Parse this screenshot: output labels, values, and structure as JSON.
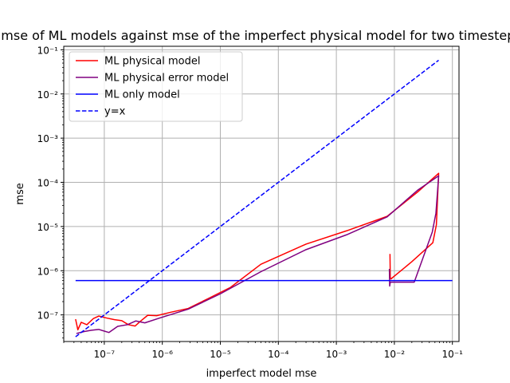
{
  "chart_data": {
    "type": "line",
    "title": "mse of ML models against mse of the imperfect physical model for two timesteps",
    "xlabel": "imperfect model mse",
    "ylabel": "mse",
    "xscale": "log",
    "yscale": "log",
    "xlim": [
      2e-08,
      0.13
    ],
    "ylim": [
      2.5e-08,
      0.12
    ],
    "grid": true,
    "legend_position": "upper-left",
    "xticks": [
      {
        "value": 1e-07,
        "label": "10⁻⁷"
      },
      {
        "value": 1e-06,
        "label": "10⁻⁶"
      },
      {
        "value": 1e-05,
        "label": "10⁻⁵"
      },
      {
        "value": 0.0001,
        "label": "10⁻⁴"
      },
      {
        "value": 0.001,
        "label": "10⁻³"
      },
      {
        "value": 0.01,
        "label": "10⁻²"
      },
      {
        "value": 0.1,
        "label": "10⁻¹"
      }
    ],
    "yticks": [
      {
        "value": 1e-07,
        "label": "10⁻⁷"
      },
      {
        "value": 1e-06,
        "label": "10⁻⁶"
      },
      {
        "value": 1e-05,
        "label": "10⁻⁵"
      },
      {
        "value": 0.0001,
        "label": "10⁻⁴"
      },
      {
        "value": 0.001,
        "label": "10⁻³"
      },
      {
        "value": 0.01,
        "label": "10⁻²"
      },
      {
        "value": 0.1,
        "label": "10⁻¹"
      }
    ],
    "series": [
      {
        "name": "ML physical model",
        "color": "#ff0000",
        "dash": "solid",
        "x": [
          3.2e-08,
          3.5e-08,
          4e-08,
          5e-08,
          6.5e-08,
          8e-08,
          1.1e-07,
          1.5e-07,
          2e-07,
          2.6e-07,
          3.4e-07,
          4.2e-07,
          5.6e-07,
          8e-07,
          1.4e-06,
          2.8e-06,
          6e-06,
          1.5e-05,
          5e-05,
          0.0003,
          0.0015,
          0.0075,
          0.025,
          0.058,
          0.053,
          0.046,
          0.02,
          0.0087,
          0.0085,
          0.0084
        ],
        "y": [
          8e-08,
          4.6e-08,
          6.8e-08,
          6e-08,
          8.3e-08,
          9.4e-08,
          8.5e-08,
          7.8e-08,
          7.4e-08,
          6e-08,
          5.6e-08,
          7.2e-08,
          9.8e-08,
          9.6e-08,
          1.15e-07,
          1.4e-07,
          2.3e-07,
          4.2e-07,
          1.4e-06,
          4e-06,
          8e-06,
          1.7e-05,
          6e-05,
          0.00016,
          1.1e-05,
          4.3e-06,
          1.6e-06,
          6.5e-07,
          7e-07,
          2.4e-06
        ]
      },
      {
        "name": "ML physical error model",
        "color": "#800080",
        "dash": "solid",
        "x": [
          3.3e-08,
          4.5e-08,
          6e-08,
          8e-08,
          1.2e-07,
          1.7e-07,
          2.5e-07,
          3.5e-07,
          5e-07,
          9e-07,
          2.8e-06,
          1e-05,
          5e-05,
          0.0003,
          0.0015,
          0.0075,
          0.025,
          0.058,
          0.052,
          0.045,
          0.022,
          0.0085,
          0.0083,
          0.0082
        ],
        "y": [
          3.8e-08,
          4.2e-08,
          4.5e-08,
          4.7e-08,
          4e-08,
          5.5e-08,
          6e-08,
          7.3e-08,
          6.6e-08,
          8.5e-08,
          1.35e-07,
          3e-07,
          9.5e-07,
          3e-06,
          6.5e-06,
          1.65e-05,
          6.6e-05,
          0.00014,
          2e-05,
          7.5e-06,
          5.5e-07,
          5.5e-07,
          4.5e-07,
          1.1e-06
        ]
      },
      {
        "name": "ML only model",
        "color": "#0000ff",
        "dash": "solid",
        "x": [
          3.2e-08,
          0.1
        ],
        "y": [
          6e-07,
          6e-07
        ]
      },
      {
        "name": "y=x",
        "color": "#0000ff",
        "dash": "dashed",
        "x": [
          3.2e-08,
          0.058
        ],
        "y": [
          3.2e-08,
          0.058
        ]
      }
    ]
  }
}
